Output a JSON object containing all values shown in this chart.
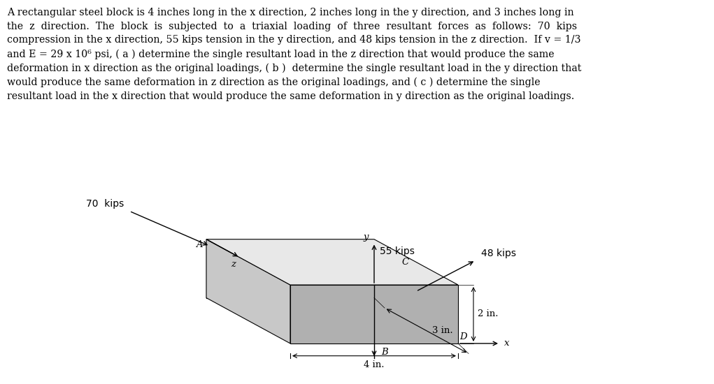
{
  "background_color": "#ffffff",
  "label_70kips": "70  kips",
  "label_55kips": "55 kips",
  "label_48kips": "48 kips",
  "label_4in": "4 in.",
  "label_3in": "3 in.",
  "label_2in": "2 in.",
  "label_A": "A",
  "label_B": "B",
  "label_C": "C",
  "label_D": "D",
  "label_x": "x",
  "label_y": "y",
  "label_z": "z",
  "text_line1": "A rectangular steel block is 4 inches long in the x direction, 2 inches long in the y direction, and 3 inches long in",
  "text_line2": "the  z  direction.  The  block  is  subjected  to  a  triaxial  loading  of  three  resultant  forces  as  follows:  70  kips",
  "text_line3": "compression in the x direction, 55 kips tension in the y direction, and 48 kips tension in the z direction.  If v = 1/3",
  "text_line4": "and E = 29 x 10⁶ psi, ( a ) determine the single resultant load in the z direction that would produce the same",
  "text_line5": "deformation in x direction as the original loadings, ( b )  determine the single resultant load in the y direction that",
  "text_line6": "would produce the same deformation in z direction as the original loadings, and ( c ) determine the single",
  "text_line7": "resultant load in the x direction that would produce the same deformation in y direction as the original loadings.",
  "face_left_color": "#c8c8c8",
  "face_top_color": "#e8e8e8",
  "face_front_color": "#b0b0b0"
}
